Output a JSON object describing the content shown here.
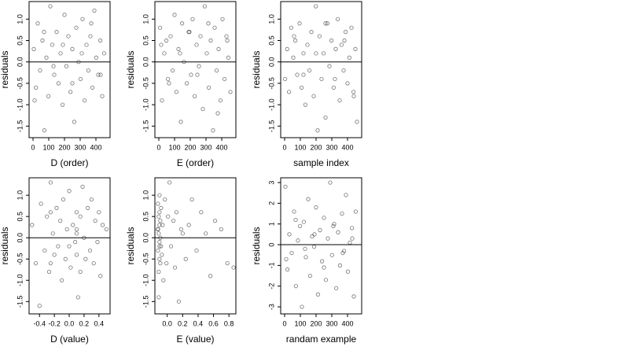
{
  "chart_data": [
    {
      "type": "scatter",
      "xlabel": "D (order)",
      "ylabel": "residuals",
      "color": "#000000",
      "hline": 0,
      "xlim": [
        -25,
        490
      ],
      "ylim": [
        -1.77,
        1.41
      ],
      "xticks": [
        0,
        100,
        200,
        300,
        400
      ],
      "yticks": [
        {
          "value": -1.5,
          "label": "-1.5"
        },
        {
          "value": -1,
          "label": "-1.0"
        },
        {
          "value": -0.5,
          "label": "-0.5"
        },
        {
          "value": 0,
          "label": "0.0"
        },
        0.5,
        {
          "value": 1,
          "label": "1.0"
        }
      ],
      "x": [
        5,
        18,
        30,
        45,
        60,
        72,
        85,
        98,
        110,
        122,
        135,
        150,
        162,
        175,
        188,
        200,
        212,
        225,
        238,
        250,
        262,
        275,
        290,
        302,
        315,
        328,
        340,
        352,
        365,
        378,
        390,
        402,
        415,
        428,
        440,
        452,
        10,
        70,
        130,
        190,
        250,
        310,
        370,
        430
      ],
      "y": [
        0.3,
        -0.6,
        0.9,
        -0.2,
        0.5,
        -1.6,
        0.1,
        -0.8,
        1.3,
        0.4,
        -0.3,
        0.7,
        -0.5,
        0.2,
        -1.0,
        1.1,
        -0.1,
        0.6,
        -0.7,
        0.3,
        -1.4,
        0.8,
        0.0,
        -0.4,
        1.0,
        -0.9,
        0.4,
        -0.2,
        0.6,
        -0.6,
        1.2,
        0.1,
        -0.3,
        0.5,
        -0.8,
        0.2,
        -0.9,
        0.7,
        -0.1,
        0.4,
        -0.5,
        0.2,
        0.9,
        -0.3
      ]
    },
    {
      "type": "scatter",
      "xlabel": "E (order)",
      "ylabel": "residuals",
      "color": "#000000",
      "hline": 0,
      "xlim": [
        -25,
        490
      ],
      "ylim": [
        -1.77,
        1.41
      ],
      "xticks": [
        0,
        100,
        200,
        300,
        400
      ],
      "yticks": [
        {
          "value": -1.5,
          "label": "-1.5"
        },
        {
          "value": -1,
          "label": "-1.0"
        },
        {
          "value": -0.5,
          "label": "-0.5"
        },
        {
          "value": 0,
          "label": "0.0"
        },
        0.5,
        {
          "value": 1,
          "label": "1.0"
        }
      ],
      "x": [
        8,
        20,
        35,
        48,
        58,
        75,
        88,
        100,
        112,
        125,
        140,
        148,
        160,
        178,
        190,
        205,
        215,
        228,
        240,
        255,
        265,
        280,
        292,
        305,
        318,
        330,
        345,
        355,
        368,
        380,
        392,
        405,
        418,
        430,
        442,
        455,
        15,
        65,
        135,
        195,
        245,
        315,
        375,
        435
      ],
      "y": [
        0.8,
        -0.9,
        0.2,
        0.5,
        -0.4,
        0.6,
        -0.2,
        1.1,
        -0.7,
        0.3,
        -1.4,
        0.9,
        0.0,
        -0.5,
        0.7,
        -0.3,
        1.0,
        -0.8,
        0.4,
        -0.1,
        0.6,
        -1.1,
        1.3,
        0.2,
        -0.6,
        0.5,
        -1.6,
        0.8,
        -0.2,
        0.3,
        -0.9,
        1.0,
        -0.4,
        0.6,
        0.1,
        -0.7,
        0.4,
        -0.5,
        0.2,
        0.7,
        -0.3,
        0.9,
        -1.2,
        0.5
      ]
    },
    {
      "type": "scatter",
      "xlabel": "sample index",
      "ylabel": "residuals",
      "color": "#000000",
      "hline": 0,
      "xlim": [
        -25,
        490
      ],
      "ylim": [
        -1.77,
        1.41
      ],
      "xticks": [
        0,
        100,
        200,
        300,
        400
      ],
      "yticks": [
        {
          "value": -1.5,
          "label": "-1.5"
        },
        {
          "value": -1,
          "label": "-1.0"
        },
        {
          "value": -0.5,
          "label": "-0.5"
        },
        {
          "value": 0,
          "label": "0.0"
        },
        0.5,
        {
          "value": 1,
          "label": "1.0"
        }
      ],
      "x": [
        3,
        16,
        28,
        42,
        55,
        68,
        80,
        95,
        108,
        120,
        132,
        145,
        158,
        170,
        185,
        198,
        210,
        222,
        235,
        248,
        260,
        272,
        285,
        298,
        312,
        325,
        338,
        350,
        362,
        375,
        388,
        400,
        412,
        425,
        438,
        450,
        460,
        60,
        120,
        200,
        260,
        320,
        380,
        440
      ],
      "y": [
        -0.4,
        0.3,
        -0.7,
        0.8,
        0.1,
        0.5,
        -0.3,
        0.9,
        -0.6,
        0.2,
        -1.0,
        0.4,
        -0.2,
        0.7,
        -0.8,
        1.3,
        -1.6,
        0.6,
        -0.4,
        0.2,
        -1.3,
        0.9,
        -0.1,
        0.5,
        -0.6,
        0.3,
        1.0,
        -0.9,
        0.4,
        -0.2,
        0.7,
        -0.5,
        0.1,
        0.8,
        -0.7,
        0.3,
        -1.4,
        0.6,
        -0.3,
        0.2,
        0.9,
        -0.4,
        0.5,
        -0.8
      ]
    },
    {
      "type": "scatter",
      "xlabel": "D (value)",
      "ylabel": "residuals",
      "color": "#000000",
      "hline": 0,
      "xlim": [
        -0.54,
        0.55
      ],
      "ylim": [
        -1.79,
        1.41
      ],
      "xticks": [
        -0.4,
        -0.2,
        {
          "value": 0,
          "label": "0.0"
        },
        0.2,
        0.4
      ],
      "yticks": [
        {
          "value": -1.5,
          "label": "-1.5"
        },
        {
          "value": -1,
          "label": "-1.0"
        },
        {
          "value": -0.5,
          "label": "-0.5"
        },
        {
          "value": 0,
          "label": "0.0"
        },
        0.5,
        {
          "value": 1,
          "label": "1.0"
        }
      ],
      "x": [
        -0.5,
        -0.45,
        -0.4,
        -0.38,
        -0.33,
        -0.3,
        -0.27,
        -0.25,
        -0.22,
        -0.2,
        -0.17,
        -0.15,
        -0.12,
        -0.1,
        -0.08,
        -0.05,
        -0.03,
        0.0,
        0.02,
        0.05,
        0.08,
        0.1,
        0.1,
        0.1,
        0.12,
        0.15,
        0.15,
        0.18,
        0.2,
        0.22,
        0.25,
        0.28,
        0.3,
        0.33,
        0.35,
        0.38,
        0.4,
        0.42,
        0.45,
        0.5,
        -0.25,
        -0.25,
        0.0,
        0.1
      ],
      "y": [
        0.3,
        -0.6,
        -1.6,
        0.8,
        -0.3,
        0.5,
        -0.8,
        1.3,
        0.1,
        -0.4,
        0.7,
        -0.2,
        0.4,
        -1.0,
        0.9,
        -0.5,
        0.2,
        1.1,
        -0.7,
        0.3,
        -0.1,
        0.2,
        -0.4,
        0.6,
        -1.4,
        0.5,
        -0.8,
        1.2,
        0.0,
        -0.5,
        0.7,
        -0.3,
        0.9,
        -0.6,
        0.4,
        -0.1,
        0.6,
        -0.9,
        0.3,
        0.2,
        -0.6,
        0.6,
        -0.2,
        0.1
      ]
    },
    {
      "type": "scatter",
      "xlabel": "E (value)",
      "ylabel": "residuals",
      "color": "#000000",
      "hline": 0,
      "xlim": [
        -0.16,
        0.89
      ],
      "ylim": [
        -1.79,
        1.41
      ],
      "xticks": [
        {
          "value": 0,
          "label": "0.0"
        },
        0.2,
        0.4,
        0.6,
        0.8
      ],
      "yticks": [
        {
          "value": -1.5,
          "label": "-1.5"
        },
        {
          "value": -1,
          "label": "-1.0"
        },
        {
          "value": -0.5,
          "label": "-0.5"
        },
        {
          "value": 0,
          "label": "0.0"
        },
        0.5,
        {
          "value": 1,
          "label": "1.0"
        }
      ],
      "x": [
        -0.12,
        -0.12,
        -0.12,
        -0.11,
        -0.11,
        -0.11,
        -0.11,
        -0.1,
        -0.1,
        -0.1,
        -0.1,
        -0.1,
        -0.09,
        -0.09,
        -0.09,
        -0.08,
        -0.08,
        -0.07,
        -0.06,
        -0.05,
        -0.03,
        -0.01,
        0.01,
        0.03,
        0.05,
        0.08,
        0.1,
        0.12,
        0.15,
        0.18,
        0.2,
        0.24,
        0.28,
        0.32,
        0.38,
        0.44,
        0.5,
        0.56,
        0.62,
        0.7,
        0.78,
        0.86,
        -0.12,
        -0.1
      ],
      "y": [
        0.8,
        -0.3,
        0.2,
        -0.8,
        0.5,
        -1.4,
        0.1,
        0.6,
        -0.5,
        0.3,
        -0.1,
        1.0,
        -0.6,
        0.4,
        0.0,
        -0.2,
        0.7,
        -0.4,
        0.3,
        -1.0,
        0.9,
        -0.6,
        0.5,
        1.3,
        -0.2,
        0.4,
        -0.7,
        0.6,
        -1.5,
        0.2,
        0.1,
        -0.5,
        0.3,
        0.9,
        -0.3,
        0.6,
        0.1,
        -0.9,
        0.4,
        0.2,
        -0.6,
        -0.7,
        0.2,
        -0.2
      ]
    },
    {
      "type": "scatter",
      "xlabel": "randam example",
      "ylabel": "residuals",
      "color": "#000000",
      "hline": 0,
      "xlim": [
        -25,
        490
      ],
      "ylim": [
        -3.34,
        3.23
      ],
      "xticks": [
        0,
        100,
        200,
        300,
        400
      ],
      "yticks": [
        -3,
        -2,
        -1,
        0,
        1,
        2,
        3
      ],
      "x": [
        5,
        18,
        30,
        45,
        60,
        72,
        85,
        98,
        110,
        122,
        135,
        150,
        162,
        175,
        188,
        200,
        212,
        225,
        238,
        250,
        262,
        275,
        290,
        302,
        315,
        328,
        340,
        352,
        365,
        378,
        390,
        402,
        415,
        428,
        440,
        452,
        10,
        70,
        130,
        190,
        250,
        310,
        370,
        430
      ],
      "y": [
        2.8,
        -1.2,
        0.5,
        -0.4,
        1.6,
        -2.0,
        0.2,
        0.9,
        -3.0,
        1.1,
        -0.6,
        2.2,
        -1.5,
        0.4,
        -0.1,
        1.8,
        -2.4,
        0.7,
        -0.8,
        1.3,
        -1.7,
        0.3,
        3.0,
        -0.5,
        1.0,
        -2.1,
        0.6,
        -1.0,
        1.5,
        -0.3,
        2.4,
        -1.3,
        0.1,
        0.8,
        -2.5,
        1.6,
        -0.7,
        1.2,
        -0.2,
        0.5,
        -1.1,
        0.9,
        -0.4,
        0.3
      ]
    }
  ]
}
